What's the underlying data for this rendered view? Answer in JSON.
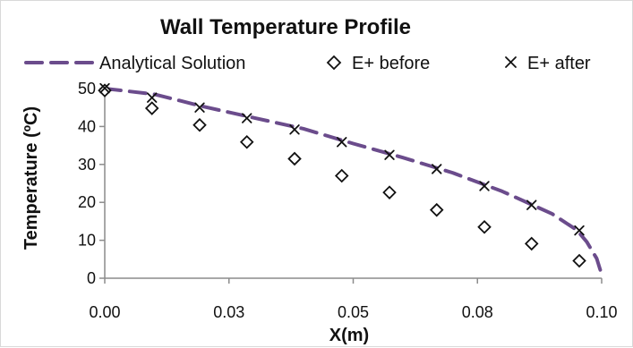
{
  "chart_data": {
    "type": "line",
    "title": "Wall Temperature Profile",
    "xlabel": "X(m)",
    "ylabel": "Temperature (ºC)",
    "xlim": [
      0,
      0.1
    ],
    "ylim": [
      0,
      50
    ],
    "x_ticks": [
      {
        "value": 0.0,
        "label": "0.00"
      },
      {
        "value": 0.025,
        "label": "0.03"
      },
      {
        "value": 0.05,
        "label": "0.05"
      },
      {
        "value": 0.075,
        "label": "0.08"
      },
      {
        "value": 0.1,
        "label": "0.10"
      }
    ],
    "y_ticks": [
      0,
      10,
      20,
      30,
      40,
      50
    ],
    "legend_position": "top",
    "grid": false,
    "series": [
      {
        "name": "Analytical Solution",
        "type": "line",
        "style": "dashed",
        "color": "#6b4c8c",
        "x": [
          0.0,
          0.01,
          0.02,
          0.03,
          0.04,
          0.05,
          0.06,
          0.07,
          0.08,
          0.09,
          0.095,
          0.097,
          0.099,
          0.1
        ],
        "y": [
          50.0,
          48.5,
          45.2,
          42.3,
          39.4,
          35.5,
          31.8,
          27.8,
          22.9,
          17.0,
          12.7,
          9.6,
          5.2,
          1.0
        ]
      },
      {
        "name": "E+ before",
        "type": "scatter",
        "marker": "diamond",
        "color": "#111111",
        "x": [
          0.0,
          0.0095,
          0.0191,
          0.0286,
          0.0382,
          0.0477,
          0.0573,
          0.0668,
          0.0764,
          0.0859,
          0.0955
        ],
        "y": [
          49.5,
          44.8,
          40.4,
          35.9,
          31.5,
          27.0,
          22.6,
          18.0,
          13.5,
          9.1,
          4.6
        ]
      },
      {
        "name": "E+ after",
        "type": "scatter",
        "marker": "x",
        "color": "#111111",
        "x": [
          0.0,
          0.0095,
          0.0191,
          0.0286,
          0.0382,
          0.0477,
          0.0573,
          0.0668,
          0.0764,
          0.0859,
          0.0955
        ],
        "y": [
          50.1,
          47.6,
          45.0,
          42.2,
          39.2,
          35.9,
          32.5,
          28.8,
          24.3,
          19.3,
          12.6
        ]
      }
    ]
  }
}
